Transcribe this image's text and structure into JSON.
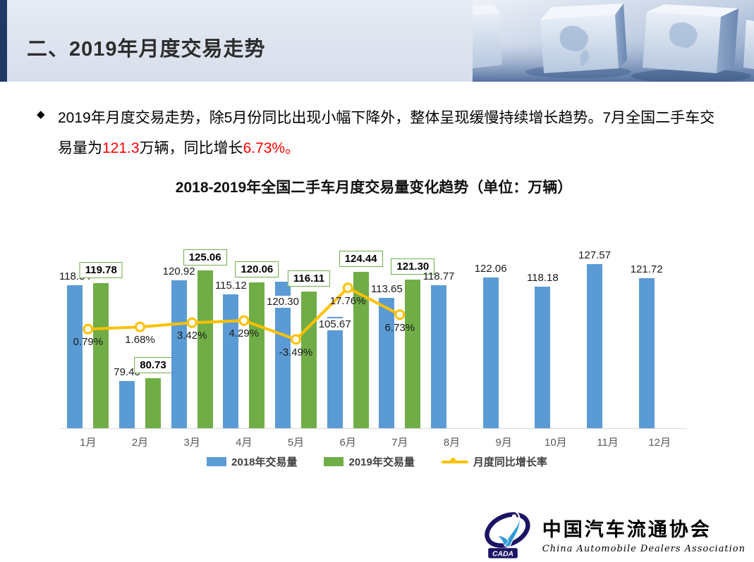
{
  "header": {
    "title": "二、2019年月度交易走势"
  },
  "bullet": {
    "segments": [
      {
        "text": "2019年月度交易走势，除5月份同比出现小幅下降外，整体呈现缓慢持续增长趋势。7月全国二手车交易量为",
        "red": false
      },
      {
        "text": "121.3",
        "red": true
      },
      {
        "text": "万辆，同比增长",
        "red": false
      },
      {
        "text": "6.73%。",
        "red": true
      }
    ]
  },
  "chart_data": {
    "type": "combo",
    "title": "2018-2019年全国二手车月度交易量变化趋势（单位：万辆）",
    "categories": [
      "1月",
      "2月",
      "3月",
      "4月",
      "5月",
      "6月",
      "7月",
      "8月",
      "9月",
      "10月",
      "11月",
      "12月"
    ],
    "series": [
      {
        "name": "2018年交易量",
        "type": "bar",
        "color": "#5B9BD5",
        "values": [
          118.84,
          79.4,
          120.92,
          115.12,
          120.3,
          105.67,
          113.65,
          118.77,
          122.06,
          118.18,
          127.57,
          121.72
        ]
      },
      {
        "name": "2019年交易量",
        "type": "bar",
        "color": "#70AD47",
        "values": [
          119.78,
          80.73,
          125.06,
          120.06,
          116.11,
          124.44,
          121.3,
          null,
          null,
          null,
          null,
          null
        ]
      },
      {
        "name": "月度同比增长率",
        "type": "line",
        "color": "#FFC000",
        "unit": "%",
        "values": [
          0.79,
          1.68,
          3.42,
          4.29,
          -3.49,
          17.76,
          6.73,
          null,
          null,
          null,
          null,
          null
        ]
      }
    ],
    "axis_hints": {
      "primary_min": 60,
      "primary_max": 140,
      "secondary_min_pct": -40,
      "secondary_max_pct": 40,
      "grid": false,
      "legend_position": "bottom",
      "axis_line_color": "#D9D9D9",
      "tick_label_color": "#595959"
    }
  },
  "logo": {
    "acronym": "CADA",
    "name_cn": "中国汽车流通协会",
    "name_en": "China  Automobile  Dealers  Association"
  }
}
